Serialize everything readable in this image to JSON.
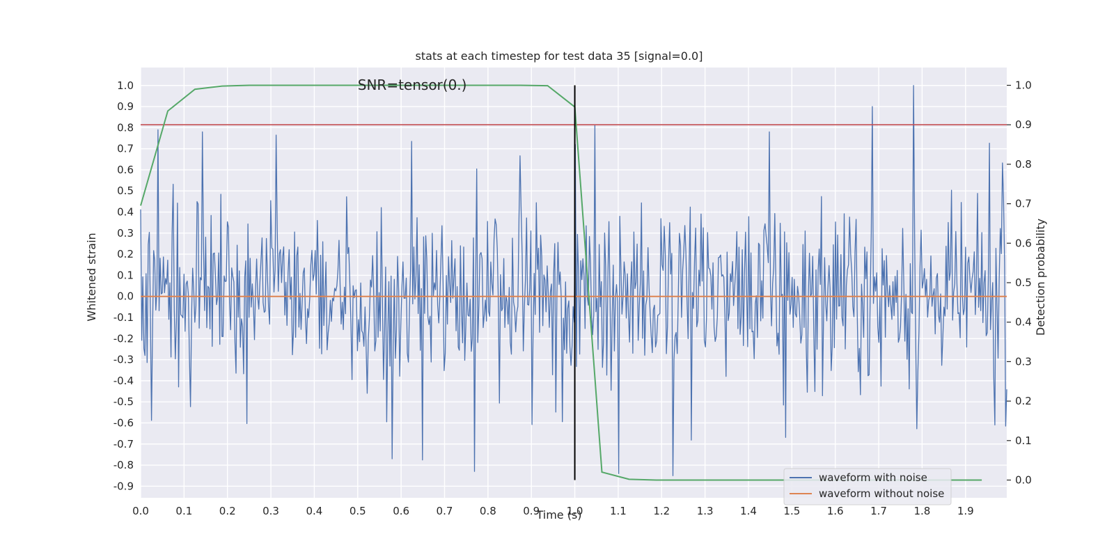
{
  "chart_data": {
    "type": "line",
    "title": "stats at each timestep for test data 35 [signal=0.0]",
    "xlabel": "Time (s)",
    "ylabel": "Whitened strain",
    "ylabel_right": "Detection probability",
    "xlim": [
      0.0,
      1.995
    ],
    "ylim": [
      -0.955,
      1.085
    ],
    "ylim_right": [
      -0.045,
      1.045
    ],
    "x_ticks": [
      "0.0",
      "0.1",
      "0.2",
      "0.3",
      "0.4",
      "0.5",
      "0.6",
      "0.7",
      "0.8",
      "0.9",
      "1.0",
      "1.1",
      "1.2",
      "1.3",
      "1.4",
      "1.5",
      "1.6",
      "1.7",
      "1.8",
      "1.9"
    ],
    "y_ticks": [
      "1.0",
      "0.9",
      "0.8",
      "0.7",
      "0.6",
      "0.5",
      "0.4",
      "0.3",
      "0.2",
      "0.1",
      "0.0",
      "-0.1",
      "-0.2",
      "-0.3",
      "-0.4",
      "-0.5",
      "-0.6",
      "-0.7",
      "-0.8",
      "-0.9"
    ],
    "y_ticks_right": [
      "1.0",
      "0.9",
      "0.8",
      "0.7",
      "0.6",
      "0.5",
      "0.4",
      "0.3",
      "0.2",
      "0.1",
      "0.0"
    ],
    "grid": true,
    "legend_position": "lower-right",
    "annotation": {
      "text": "SNR=tensor(0.)",
      "x": 0.5,
      "y": 1.0
    },
    "threshold_line": {
      "y_right": 0.9,
      "color": "#c44e52"
    },
    "vertical_line": {
      "x": 1.0,
      "y_right_range": [
        0.0,
        1.0
      ],
      "color": "#000000"
    },
    "series": [
      {
        "name": "waveform with noise",
        "axis": "left",
        "color": "#4c72b0",
        "kind": "noise",
        "x_range": [
          0.0,
          1.995
        ],
        "points": 800,
        "amplitude_range": [
          -0.85,
          1.0
        ],
        "notable_peaks": [
          {
            "x": 1.78,
            "y": 1.0
          },
          {
            "x": 1.685,
            "y": 0.9
          },
          {
            "x": 1.045,
            "y": 0.81
          },
          {
            "x": 0.04,
            "y": 0.79
          },
          {
            "x": 1.0,
            "y": 0.72
          },
          {
            "x": 0.77,
            "y": -0.83
          },
          {
            "x": 1.1,
            "y": -0.84
          },
          {
            "x": 1.225,
            "y": -0.85
          },
          {
            "x": 0.58,
            "y": -0.77
          }
        ]
      },
      {
        "name": "waveform without noise",
        "axis": "left",
        "color": "#dd8452",
        "x": [
          0.0,
          1.995
        ],
        "y": [
          0.0,
          0.0
        ]
      },
      {
        "name": "Detection probability",
        "axis": "right",
        "color": "#55a868",
        "x": [
          0.0,
          0.0625,
          0.125,
          0.1875,
          0.25,
          0.3125,
          0.375,
          0.4375,
          0.5,
          0.5625,
          0.625,
          0.6875,
          0.75,
          0.8125,
          0.875,
          0.9375,
          1.0,
          1.0625,
          1.125,
          1.1875,
          1.25,
          1.3125,
          1.375,
          1.4375,
          1.5,
          1.5625,
          1.625,
          1.6875,
          1.75,
          1.8125,
          1.875,
          1.9375
        ],
        "y": [
          0.695,
          0.935,
          0.99,
          0.998,
          1.0,
          1.0,
          1.0,
          1.0,
          1.0,
          1.0,
          1.0,
          1.0,
          1.0,
          1.0,
          1.0,
          0.999,
          0.945,
          0.02,
          0.002,
          0.0,
          0.0,
          0.0,
          0.0,
          0.0,
          0.0,
          0.0,
          0.0,
          0.0,
          0.0,
          0.0,
          0.0,
          0.0
        ]
      }
    ]
  }
}
